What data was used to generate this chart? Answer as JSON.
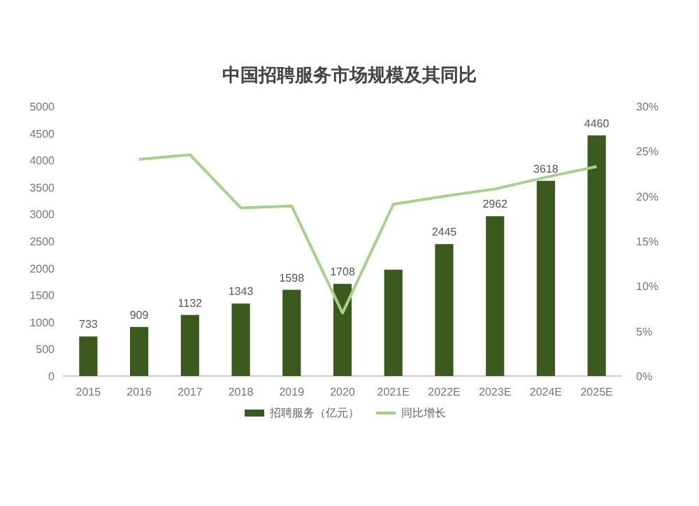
{
  "chart_data": {
    "type": "bar",
    "title": "中国招聘服务市场规模及其同比",
    "categories": [
      "2015",
      "2016",
      "2017",
      "2018",
      "2019",
      "2020",
      "2021E",
      "2022E",
      "2023E",
      "2024E",
      "2025E"
    ],
    "series": [
      {
        "name": "招聘服务（亿元）",
        "color": "#3d5a1e",
        "values": [
          733,
          909,
          1132,
          1343,
          1598,
          1708,
          1970,
          2445,
          2962,
          3618,
          4460
        ],
        "value_labels": [
          "733",
          "909",
          "1132",
          "1343",
          "1598",
          "1708",
          null,
          "2445",
          "2962",
          "3618",
          "4460"
        ]
      },
      {
        "name": "同比增长",
        "type": "line",
        "axis": "y2",
        "color": "#a8d08d",
        "values": [
          null,
          24.1,
          24.6,
          18.7,
          18.9,
          7.0,
          19.1,
          20.0,
          20.8,
          22.1,
          23.3
        ]
      }
    ],
    "ylim": [
      0,
      5000
    ],
    "yticks": [
      0,
      500,
      1000,
      1500,
      2000,
      2500,
      3000,
      3500,
      4000,
      4500,
      5000
    ],
    "y2lim": [
      0,
      30
    ],
    "y2ticks": [
      {
        "value": 0,
        "label": "0%"
      },
      {
        "value": 5,
        "label": "5%"
      },
      {
        "value": 10,
        "label": "10%"
      },
      {
        "value": 15,
        "label": "15%"
      },
      {
        "value": 20,
        "label": "20%"
      },
      {
        "value": 25,
        "label": "25%"
      },
      {
        "value": 30,
        "label": "30%"
      }
    ],
    "legend": "bottom",
    "marker": "none"
  }
}
